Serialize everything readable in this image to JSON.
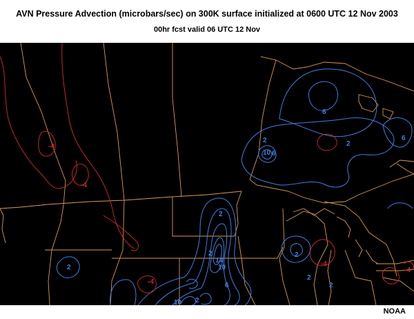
{
  "header": {
    "title": "AVN Pressure Advection (microbars/sec) on 300K surface initialized at 0600 UTC 12 Nov 2003",
    "subtitle": "00hr fcst valid 06 UTC 12 Nov"
  },
  "footer": {
    "credit": "NOAA"
  },
  "colors": {
    "background": "#000000",
    "boundaries": "#d99a55",
    "positive_contours": "#3f7fe0",
    "negative_contours": "#c4262b"
  },
  "contour_labels": {
    "blue": [
      "6",
      "2",
      "2",
      "10",
      "6",
      "2",
      "6",
      "2",
      "14",
      "10",
      "6",
      "2",
      "2",
      "2",
      "10",
      "2",
      "2"
    ],
    "red": [
      "-4",
      "-4",
      "-4",
      "-4",
      "-4"
    ]
  }
}
